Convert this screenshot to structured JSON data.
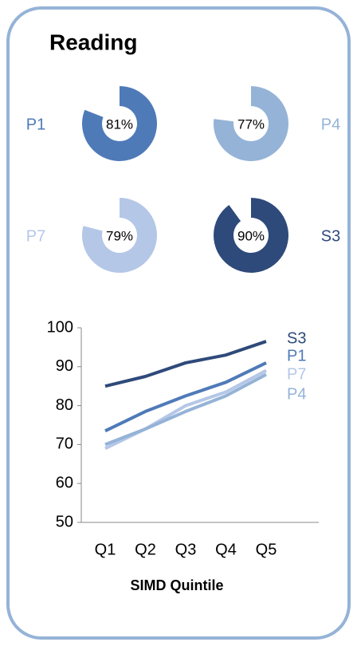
{
  "title": "Reading",
  "chart_data": [
    {
      "type": "donut",
      "name": "P1",
      "values": [
        81
      ],
      "value_labels": [
        "81%"
      ],
      "color": "#4f7ab8"
    },
    {
      "type": "donut",
      "name": "P4",
      "values": [
        77
      ],
      "value_labels": [
        "77%"
      ],
      "color": "#95b3d7"
    },
    {
      "type": "donut",
      "name": "P7",
      "values": [
        79
      ],
      "value_labels": [
        "79%"
      ],
      "color": "#b4c7e7"
    },
    {
      "type": "donut",
      "name": "S3",
      "values": [
        90
      ],
      "value_labels": [
        "90%"
      ],
      "color": "#2e4a7a"
    },
    {
      "type": "line",
      "xlabel": "SIMD Quintile",
      "categories": [
        "Q1",
        "Q2",
        "Q3",
        "Q4",
        "Q5"
      ],
      "ylim": [
        50,
        100
      ],
      "yticks": [
        50,
        60,
        70,
        80,
        90,
        100
      ],
      "series": [
        {
          "name": "S3",
          "color": "#2e4a7a",
          "values": [
            85,
            87.5,
            91,
            93,
            96.5
          ]
        },
        {
          "name": "P1",
          "color": "#4f7ab8",
          "values": [
            73.5,
            78.5,
            82.5,
            86,
            91
          ]
        },
        {
          "name": "P7",
          "color": "#b4c7e7",
          "values": [
            69,
            74,
            80,
            83.5,
            89
          ]
        },
        {
          "name": "P4",
          "color": "#95b3d7",
          "values": [
            70,
            74,
            78.5,
            82.5,
            88
          ]
        }
      ]
    }
  ]
}
